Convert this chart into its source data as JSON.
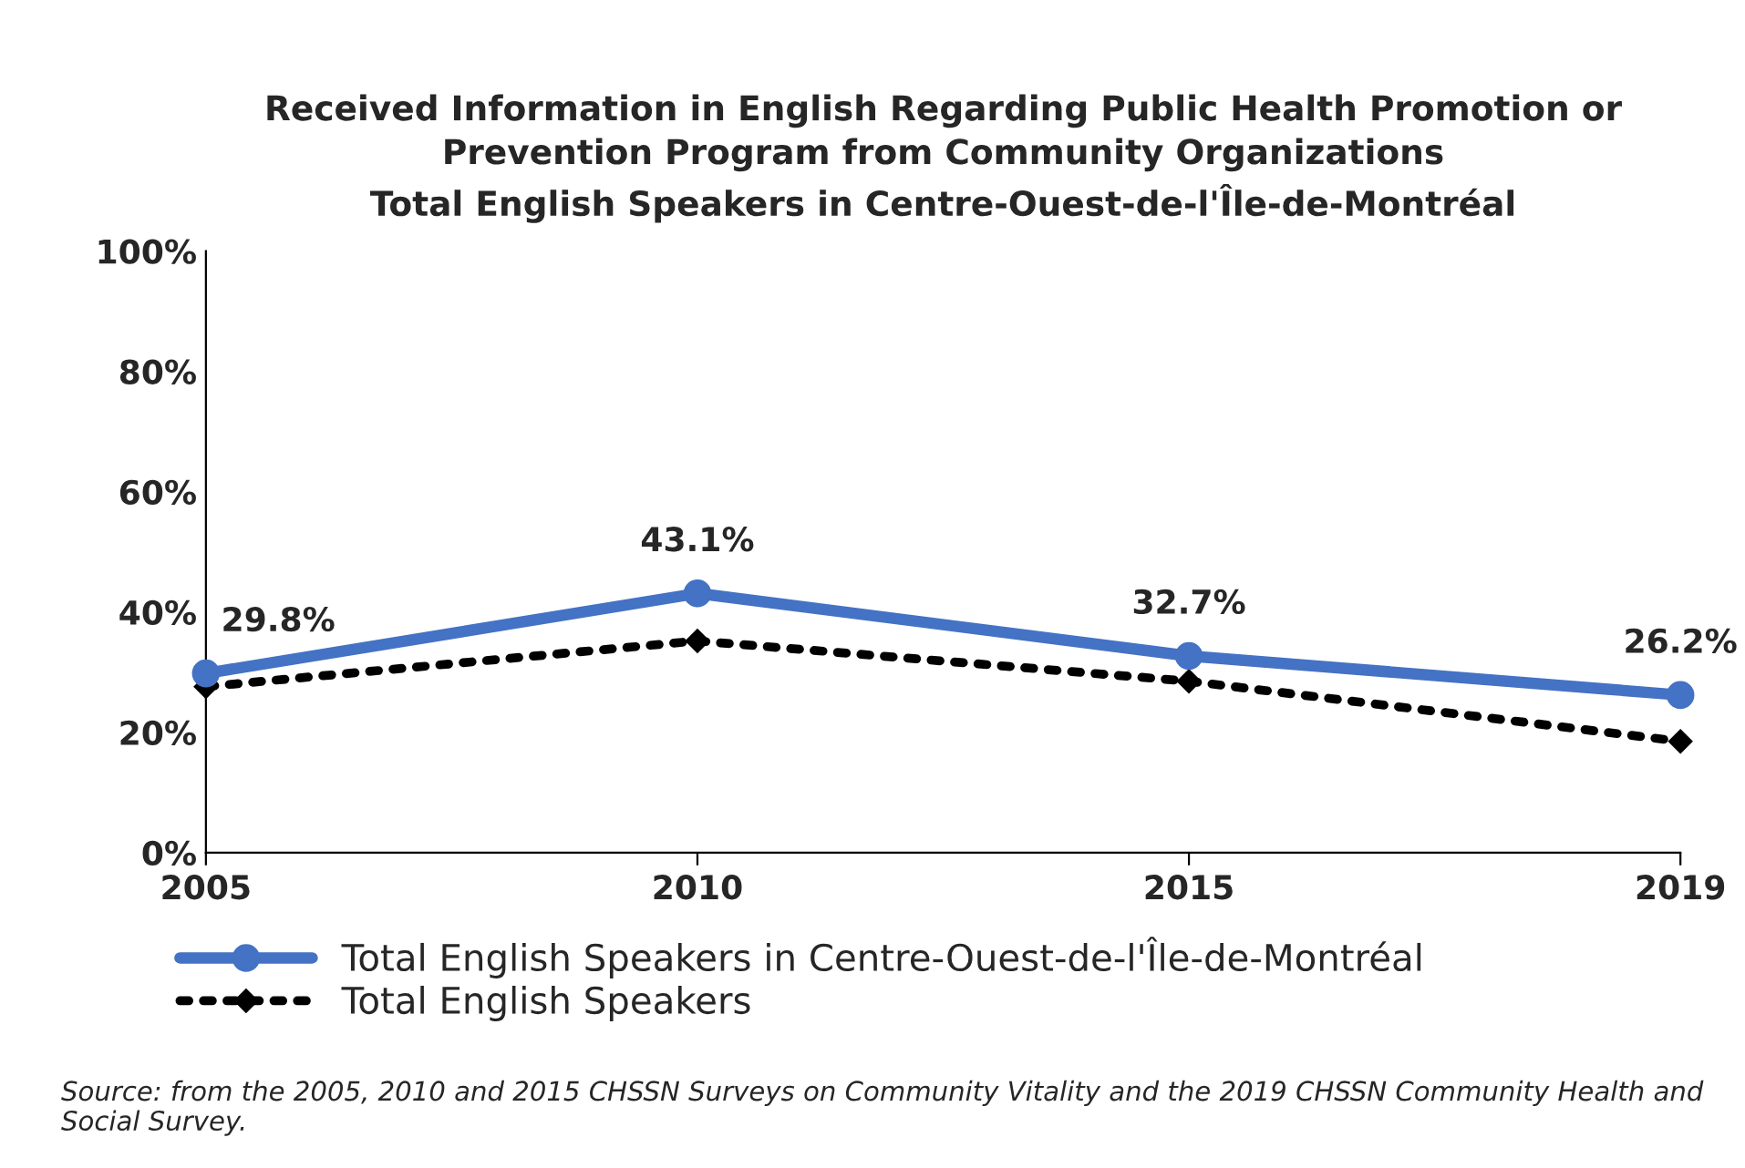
{
  "chart_data": {
    "type": "line",
    "title": "Received Information in English Regarding Public Health Promotion or\nPrevention Program from Community Organizations\nTotal English Speakers in Centre-Ouest-de-l'Île-de-Montréal",
    "categories": [
      "2005",
      "2010",
      "2015",
      "2019"
    ],
    "series": [
      {
        "name": "Total English Speakers in Centre-Ouest-de-l'Île-de-Montréal",
        "color": "#4472c4",
        "values": [
          29.8,
          43.1,
          32.7,
          26.2
        ],
        "marker": "circle",
        "line_style": "solid",
        "value_labels": [
          "29.8%",
          "43.1%",
          "32.7%",
          "26.2%"
        ]
      },
      {
        "name": "Total English Speakers",
        "color": "#000000",
        "values": [
          27.6,
          35.2,
          28.5,
          18.5
        ],
        "marker": "diamond",
        "line_style": "dotted"
      }
    ],
    "ylim": [
      0,
      100
    ],
    "yticks": [
      {
        "value": 0,
        "label": "0%"
      },
      {
        "value": 20,
        "label": "20%"
      },
      {
        "value": 40,
        "label": "40%"
      },
      {
        "value": 60,
        "label": "60%"
      },
      {
        "value": 80,
        "label": "80%"
      },
      {
        "value": 100,
        "label": "100%"
      }
    ],
    "grid": false,
    "legend": "bottom",
    "annotations": [
      "Source: from the 2005, 2010 and 2015 CHSSN Surveys on Community Vitality and the 2019 CHSSN Community Health and Social Survey."
    ]
  }
}
